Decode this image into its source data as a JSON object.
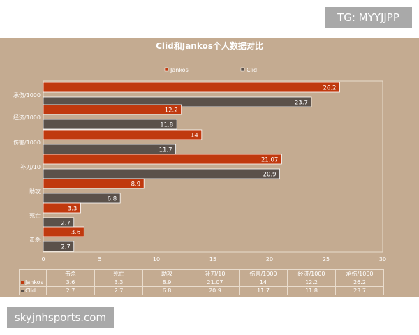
{
  "watermark_top": "TG: MYYJJPP",
  "watermark_bottom": "skyjnhsports.com",
  "colors": {
    "background": "#c4ab91",
    "jankos": "#c0390e",
    "clid": "#5b514a"
  },
  "chart_data": {
    "type": "bar",
    "orientation": "horizontal",
    "title": "Clid和Jankos个人数据对比",
    "categories": [
      "承伤/1000",
      "经济/1000",
      "伤害/1000",
      "补刀/10",
      "助攻",
      "死亡",
      "击杀"
    ],
    "series": [
      {
        "name": "Jankos",
        "color": "#c0390e",
        "values": [
          26.2,
          12.2,
          14,
          21.07,
          8.9,
          3.3,
          3.6
        ]
      },
      {
        "name": "Clid",
        "color": "#5b514a",
        "values": [
          23.7,
          11.8,
          11.7,
          20.9,
          6.8,
          2.7,
          2.7
        ]
      }
    ],
    "xlim": [
      0,
      30
    ],
    "xticks": [
      0,
      5,
      10,
      15,
      20,
      25,
      30
    ],
    "grid": false,
    "legend_position": "top",
    "data_table": {
      "columns": [
        "击杀",
        "死亡",
        "助攻",
        "补刀/10",
        "伤害/1000",
        "经济/1000",
        "承伤/1000"
      ],
      "rows": [
        {
          "name": "Jankos",
          "values": [
            "3.6",
            "3.3",
            "8.9",
            "21.07",
            "14",
            "12.2",
            "26.2"
          ]
        },
        {
          "name": "Clid",
          "values": [
            "2.7",
            "2.7",
            "6.8",
            "20.9",
            "11.7",
            "11.8",
            "23.7"
          ]
        }
      ]
    }
  }
}
